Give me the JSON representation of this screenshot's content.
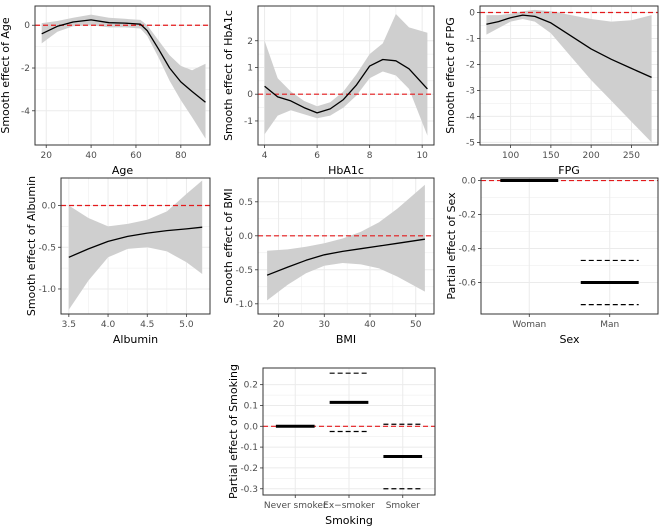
{
  "colors": {
    "ribbon": "#cfcfcf",
    "line": "#000000",
    "refline": "#e31a1c",
    "grid": "#ebebeb",
    "frame": "#333333"
  },
  "chart_data": [
    {
      "id": "age",
      "type": "line",
      "xlabel": "Age",
      "ylabel": "Smooth effect of Age",
      "xlim": [
        15,
        93
      ],
      "ylim": [
        -5.6,
        0.9
      ],
      "xticks": [
        20,
        40,
        60,
        80
      ],
      "yticks": [
        0,
        -2,
        -4
      ],
      "refline": 0,
      "x": [
        18,
        25,
        32,
        40,
        48,
        55,
        62,
        65,
        70,
        75,
        80,
        85,
        91
      ],
      "y": [
        -0.4,
        -0.05,
        0.15,
        0.25,
        0.12,
        0.1,
        0.05,
        -0.25,
        -1.1,
        -2.0,
        -2.65,
        -3.1,
        -3.6
      ],
      "lower": [
        -0.85,
        -0.3,
        -0.05,
        0.0,
        -0.1,
        -0.1,
        -0.15,
        -0.5,
        -1.5,
        -2.6,
        -3.5,
        -4.3,
        -5.3
      ],
      "upper": [
        0.1,
        0.2,
        0.35,
        0.5,
        0.35,
        0.3,
        0.25,
        0.0,
        -0.7,
        -1.4,
        -1.9,
        -2.1,
        -1.8
      ]
    },
    {
      "id": "hba1c",
      "type": "line",
      "xlabel": "HbA1c",
      "ylabel": "Smooth effect of HbA1c",
      "xlim": [
        3.75,
        10.45
      ],
      "ylim": [
        -1.9,
        3.3
      ],
      "xticks": [
        4,
        6,
        8,
        10
      ],
      "yticks": [
        2,
        1,
        0,
        -1
      ],
      "refline": 0,
      "x": [
        4,
        4.5,
        5,
        5.5,
        6,
        6.5,
        7,
        7.5,
        8,
        8.5,
        9,
        9.5,
        10.2
      ],
      "y": [
        0.3,
        -0.1,
        -0.25,
        -0.5,
        -0.7,
        -0.55,
        -0.2,
        0.35,
        1.05,
        1.3,
        1.25,
        0.95,
        0.2
      ],
      "lower": [
        -1.5,
        -0.8,
        -0.6,
        -0.75,
        -0.9,
        -0.8,
        -0.5,
        -0.05,
        0.6,
        0.85,
        0.7,
        0.2,
        -1.55
      ],
      "upper": [
        2.0,
        0.6,
        0.1,
        -0.25,
        -0.45,
        -0.3,
        0.1,
        0.75,
        1.5,
        1.9,
        3.0,
        2.5,
        2.3
      ]
    },
    {
      "id": "fpg",
      "type": "line",
      "xlabel": "FPG",
      "ylabel": "Smooth effect of FPG",
      "xlim": [
        62,
        283
      ],
      "ylim": [
        -5.1,
        0.25
      ],
      "xticks": [
        100,
        150,
        200,
        250
      ],
      "yticks": [
        0,
        -1,
        -2,
        -3,
        -4,
        -5
      ],
      "refline": 0,
      "x": [
        70,
        85,
        100,
        115,
        130,
        150,
        175,
        200,
        225,
        250,
        275
      ],
      "y": [
        -0.45,
        -0.35,
        -0.2,
        -0.1,
        -0.15,
        -0.4,
        -0.9,
        -1.4,
        -1.8,
        -2.15,
        -2.5
      ],
      "lower": [
        -0.85,
        -0.6,
        -0.35,
        -0.25,
        -0.35,
        -0.8,
        -1.7,
        -2.6,
        -3.4,
        -4.2,
        -5.0
      ],
      "upper": [
        -0.1,
        -0.1,
        -0.05,
        0.05,
        0.1,
        0.05,
        -0.1,
        -0.25,
        -0.35,
        -0.3,
        -0.1
      ]
    },
    {
      "id": "albumin",
      "type": "line",
      "xlabel": "Albumin",
      "ylabel": "Smooth effect of Albumin",
      "xlim": [
        3.4,
        5.3
      ],
      "ylim": [
        -1.3,
        0.33
      ],
      "xticks": [
        3.5,
        4.0,
        4.5,
        5.0
      ],
      "xtick_labels": [
        "3.5",
        "4.0",
        "4.5",
        "5.0"
      ],
      "yticks": [
        0.0,
        -0.5,
        -1.0
      ],
      "ytick_labels": [
        "0.0",
        "-0.5",
        "-1.0"
      ],
      "refline": 0,
      "x": [
        3.5,
        3.75,
        4.0,
        4.25,
        4.5,
        4.75,
        5.0,
        5.2
      ],
      "y": [
        -0.62,
        -0.52,
        -0.43,
        -0.37,
        -0.33,
        -0.3,
        -0.28,
        -0.26
      ],
      "lower": [
        -1.25,
        -0.9,
        -0.62,
        -0.52,
        -0.5,
        -0.55,
        -0.68,
        -0.82
      ],
      "upper": [
        0.0,
        -0.15,
        -0.25,
        -0.22,
        -0.17,
        -0.07,
        0.14,
        0.3
      ]
    },
    {
      "id": "bmi",
      "type": "line",
      "xlabel": "BMI",
      "ylabel": "Smooth effect of BMI",
      "xlim": [
        15.5,
        54
      ],
      "ylim": [
        -1.15,
        0.85
      ],
      "xticks": [
        20,
        30,
        40,
        50
      ],
      "yticks": [
        0.5,
        0.0,
        -0.5,
        -1.0
      ],
      "ytick_labels": [
        "0.5",
        "0.0",
        "-0.5",
        "-1.0"
      ],
      "refline": 0,
      "x": [
        17.5,
        22,
        26,
        30,
        34,
        38,
        42,
        46,
        52
      ],
      "y": [
        -0.58,
        -0.46,
        -0.36,
        -0.28,
        -0.23,
        -0.19,
        -0.15,
        -0.11,
        -0.05
      ],
      "lower": [
        -0.95,
        -0.72,
        -0.55,
        -0.44,
        -0.4,
        -0.42,
        -0.48,
        -0.6,
        -0.82
      ],
      "upper": [
        -0.22,
        -0.2,
        -0.16,
        -0.11,
        -0.04,
        0.06,
        0.2,
        0.4,
        0.75
      ]
    },
    {
      "id": "sex",
      "type": "partial_effect",
      "xlabel": "Sex",
      "ylabel": "Partial effect of Sex",
      "ylim": [
        -0.785,
        0.015
      ],
      "yticks": [
        0.0,
        -0.2,
        -0.4,
        -0.6
      ],
      "ytick_labels": [
        "0.0",
        "-0.2",
        "-0.4",
        "-0.6"
      ],
      "refline": 0,
      "categories": [
        "Woman",
        "Man"
      ],
      "values": [
        0.0,
        -0.6
      ],
      "lower": [
        0.0,
        -0.73
      ],
      "upper": [
        0.0,
        -0.47
      ]
    },
    {
      "id": "smoking",
      "type": "partial_effect",
      "xlabel": "Smoking",
      "ylabel": "Partial effect of Smoking",
      "ylim": [
        -0.33,
        0.28
      ],
      "yticks": [
        0.2,
        0.1,
        0.0,
        -0.1,
        -0.2,
        -0.3
      ],
      "ytick_labels": [
        "0.2",
        "0.1",
        "0.0",
        "-0.1",
        "-0.2",
        "-0.3"
      ],
      "refline": 0,
      "categories": [
        "Never smoker",
        "Ex−smoker",
        "Smoker"
      ],
      "values": [
        0.0,
        0.115,
        -0.145
      ],
      "lower": [
        0.0,
        -0.025,
        -0.3
      ],
      "upper": [
        0.0,
        0.255,
        0.01
      ]
    }
  ]
}
